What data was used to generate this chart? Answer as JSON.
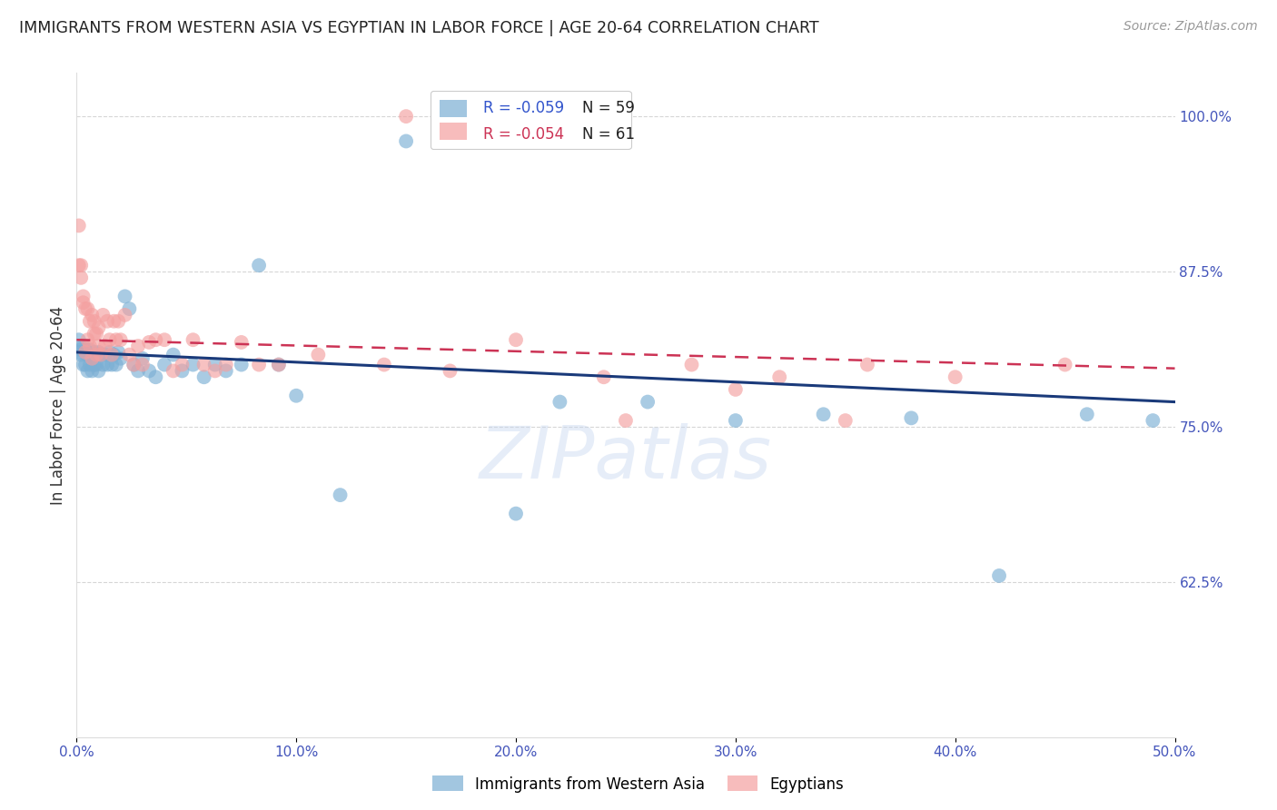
{
  "title": "IMMIGRANTS FROM WESTERN ASIA VS EGYPTIAN IN LABOR FORCE | AGE 20-64 CORRELATION CHART",
  "source": "Source: ZipAtlas.com",
  "ylabel": "In Labor Force | Age 20-64",
  "xlim": [
    0.0,
    0.5
  ],
  "ylim": [
    0.5,
    1.035
  ],
  "yticks": [
    0.625,
    0.75,
    0.875,
    1.0
  ],
  "ytick_labels": [
    "62.5%",
    "75.0%",
    "87.5%",
    "100.0%"
  ],
  "xticks": [
    0.0,
    0.1,
    0.2,
    0.3,
    0.4,
    0.5
  ],
  "xtick_labels": [
    "0.0%",
    "10.0%",
    "20.0%",
    "30.0%",
    "40.0%",
    "50.0%"
  ],
  "blue_R": -0.059,
  "blue_N": 59,
  "pink_R": -0.054,
  "pink_N": 61,
  "blue_color": "#7BAFD4",
  "pink_color": "#F4A0A0",
  "blue_line_color": "#1A3A7A",
  "pink_line_color": "#CC3355",
  "legend_label_blue": "Immigrants from Western Asia",
  "legend_label_pink": "Egyptians",
  "blue_line_x0": 0.0,
  "blue_line_x1": 0.5,
  "blue_line_y0": 0.81,
  "blue_line_y1": 0.77,
  "pink_line_x0": 0.0,
  "pink_line_x1": 0.5,
  "pink_line_y0": 0.82,
  "pink_line_y1": 0.797,
  "blue_x": [
    0.001,
    0.001,
    0.002,
    0.002,
    0.003,
    0.003,
    0.004,
    0.004,
    0.005,
    0.005,
    0.006,
    0.006,
    0.007,
    0.007,
    0.008,
    0.008,
    0.009,
    0.009,
    0.01,
    0.01,
    0.011,
    0.012,
    0.013,
    0.014,
    0.015,
    0.016,
    0.017,
    0.018,
    0.019,
    0.02,
    0.022,
    0.024,
    0.026,
    0.028,
    0.03,
    0.033,
    0.036,
    0.04,
    0.044,
    0.048,
    0.053,
    0.058,
    0.063,
    0.068,
    0.075,
    0.083,
    0.092,
    0.1,
    0.12,
    0.15,
    0.2,
    0.22,
    0.26,
    0.3,
    0.34,
    0.38,
    0.42,
    0.46,
    0.49
  ],
  "blue_y": [
    0.82,
    0.81,
    0.812,
    0.808,
    0.815,
    0.8,
    0.812,
    0.8,
    0.808,
    0.795,
    0.812,
    0.8,
    0.808,
    0.795,
    0.81,
    0.8,
    0.808,
    0.8,
    0.81,
    0.795,
    0.808,
    0.8,
    0.808,
    0.8,
    0.81,
    0.8,
    0.808,
    0.8,
    0.81,
    0.805,
    0.855,
    0.845,
    0.8,
    0.795,
    0.805,
    0.795,
    0.79,
    0.8,
    0.808,
    0.795,
    0.8,
    0.79,
    0.8,
    0.795,
    0.8,
    0.88,
    0.8,
    0.775,
    0.695,
    0.98,
    0.68,
    0.77,
    0.77,
    0.755,
    0.76,
    0.757,
    0.63,
    0.76,
    0.755
  ],
  "pink_x": [
    0.001,
    0.001,
    0.002,
    0.002,
    0.003,
    0.003,
    0.004,
    0.004,
    0.005,
    0.005,
    0.006,
    0.006,
    0.007,
    0.007,
    0.008,
    0.008,
    0.009,
    0.009,
    0.01,
    0.01,
    0.011,
    0.012,
    0.013,
    0.014,
    0.015,
    0.016,
    0.017,
    0.018,
    0.019,
    0.02,
    0.022,
    0.024,
    0.026,
    0.028,
    0.03,
    0.033,
    0.036,
    0.04,
    0.044,
    0.048,
    0.053,
    0.058,
    0.063,
    0.068,
    0.075,
    0.083,
    0.092,
    0.11,
    0.14,
    0.17,
    0.2,
    0.24,
    0.28,
    0.32,
    0.36,
    0.4,
    0.45,
    0.15,
    0.25,
    0.3,
    0.35
  ],
  "pink_y": [
    0.912,
    0.88,
    0.87,
    0.88,
    0.85,
    0.855,
    0.845,
    0.81,
    0.845,
    0.82,
    0.835,
    0.815,
    0.805,
    0.84,
    0.825,
    0.835,
    0.825,
    0.808,
    0.83,
    0.815,
    0.808,
    0.84,
    0.815,
    0.835,
    0.82,
    0.808,
    0.835,
    0.82,
    0.835,
    0.82,
    0.84,
    0.808,
    0.8,
    0.815,
    0.8,
    0.818,
    0.82,
    0.82,
    0.795,
    0.8,
    0.82,
    0.8,
    0.795,
    0.8,
    0.818,
    0.8,
    0.8,
    0.808,
    0.8,
    0.795,
    0.82,
    0.79,
    0.8,
    0.79,
    0.8,
    0.79,
    0.8,
    1.0,
    0.755,
    0.78,
    0.755
  ],
  "watermark": "ZIPatlas",
  "background_color": "#ffffff",
  "grid_color": "#cccccc"
}
